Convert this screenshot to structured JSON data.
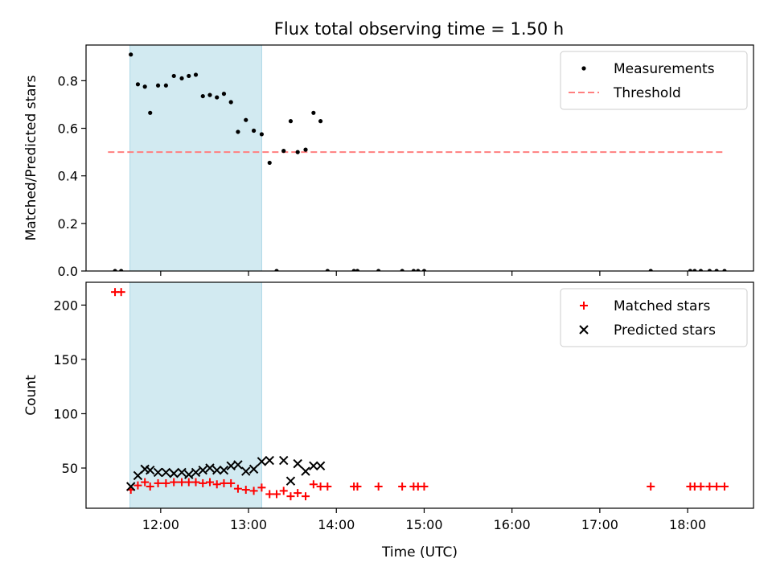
{
  "figure": {
    "title": "Flux total observing time = 1.50 h"
  },
  "chart_data": [
    {
      "type": "scatter",
      "panel": "top",
      "ylabel": "Matched/Predicted stars",
      "xlim": [
        11.15,
        18.75
      ],
      "ylim": [
        0,
        0.95
      ],
      "yticks": [
        0.0,
        0.2,
        0.4,
        0.6,
        0.8
      ],
      "ytick_labels": [
        "0.0",
        "0.2",
        "0.4",
        "0.6",
        "0.8"
      ],
      "shaded_span": {
        "x": [
          11.65,
          13.15
        ],
        "color": "#add8e6"
      },
      "legend_position": "top-right",
      "threshold": {
        "name": "Threshold",
        "y": 0.5,
        "x": [
          11.4,
          18.42
        ],
        "color": "#ff7f7f",
        "style": "dashed"
      },
      "series": [
        {
          "name": "Measurements",
          "color": "#000000",
          "marker": "dot",
          "points": [
            [
              11.48,
              0
            ],
            [
              11.55,
              0
            ],
            [
              11.66,
              0.91
            ],
            [
              11.74,
              0.785
            ],
            [
              11.82,
              0.775
            ],
            [
              11.88,
              0.665
            ],
            [
              11.97,
              0.78
            ],
            [
              12.06,
              0.78
            ],
            [
              12.15,
              0.82
            ],
            [
              12.24,
              0.81
            ],
            [
              12.32,
              0.82
            ],
            [
              12.4,
              0.825
            ],
            [
              12.48,
              0.735
            ],
            [
              12.56,
              0.74
            ],
            [
              12.64,
              0.73
            ],
            [
              12.72,
              0.745
            ],
            [
              12.8,
              0.71
            ],
            [
              12.88,
              0.585
            ],
            [
              12.97,
              0.635
            ],
            [
              13.06,
              0.59
            ],
            [
              13.15,
              0.575
            ],
            [
              13.24,
              0.455
            ],
            [
              13.32,
              0
            ],
            [
              13.4,
              0.505
            ],
            [
              13.48,
              0.63
            ],
            [
              13.56,
              0.5
            ],
            [
              13.65,
              0.51
            ],
            [
              13.74,
              0.665
            ],
            [
              13.82,
              0.63
            ],
            [
              13.9,
              0
            ],
            [
              14.2,
              0
            ],
            [
              14.24,
              0
            ],
            [
              14.48,
              0
            ],
            [
              14.75,
              0
            ],
            [
              14.88,
              0
            ],
            [
              14.93,
              0
            ],
            [
              15.0,
              0
            ],
            [
              17.58,
              0
            ],
            [
              18.03,
              0
            ],
            [
              18.08,
              0
            ],
            [
              18.15,
              0
            ],
            [
              18.25,
              0
            ],
            [
              18.33,
              0
            ],
            [
              18.42,
              0
            ]
          ]
        }
      ]
    },
    {
      "type": "scatter",
      "panel": "bottom",
      "xlabel": "Time (UTC)",
      "ylabel": "Count",
      "xlim": [
        11.15,
        18.75
      ],
      "ylim": [
        13,
        221
      ],
      "yticks": [
        50,
        100,
        150,
        200
      ],
      "ytick_labels": [
        "50",
        "100",
        "150",
        "200"
      ],
      "xticks": [
        12,
        13,
        14,
        15,
        16,
        17,
        18
      ],
      "xtick_labels": [
        "12:00",
        "13:00",
        "14:00",
        "15:00",
        "16:00",
        "17:00",
        "18:00"
      ],
      "shaded_span": {
        "x": [
          11.65,
          13.15
        ],
        "color": "#add8e6"
      },
      "legend_position": "top-right",
      "series": [
        {
          "name": "Matched stars",
          "color": "#ff0000",
          "marker": "plus",
          "points": [
            [
              11.48,
              212
            ],
            [
              11.55,
              212
            ],
            [
              11.66,
              30
            ],
            [
              11.74,
              34
            ],
            [
              11.82,
              37
            ],
            [
              11.88,
              33
            ],
            [
              11.97,
              36
            ],
            [
              12.06,
              36
            ],
            [
              12.15,
              37
            ],
            [
              12.24,
              37
            ],
            [
              12.32,
              37
            ],
            [
              12.4,
              37
            ],
            [
              12.48,
              36
            ],
            [
              12.56,
              37
            ],
            [
              12.64,
              35
            ],
            [
              12.72,
              36
            ],
            [
              12.8,
              36
            ],
            [
              12.88,
              31
            ],
            [
              12.97,
              30
            ],
            [
              13.06,
              29
            ],
            [
              13.15,
              32
            ],
            [
              13.24,
              26
            ],
            [
              13.32,
              26
            ],
            [
              13.4,
              29
            ],
            [
              13.48,
              24
            ],
            [
              13.56,
              27
            ],
            [
              13.65,
              24
            ],
            [
              13.74,
              35
            ],
            [
              13.82,
              33
            ],
            [
              13.9,
              33
            ],
            [
              14.2,
              33
            ],
            [
              14.24,
              33
            ],
            [
              14.48,
              33
            ],
            [
              14.75,
              33
            ],
            [
              14.88,
              33
            ],
            [
              14.93,
              33
            ],
            [
              15.0,
              33
            ],
            [
              17.58,
              33
            ],
            [
              18.03,
              33
            ],
            [
              18.08,
              33
            ],
            [
              18.15,
              33
            ],
            [
              18.25,
              33
            ],
            [
              18.33,
              33
            ],
            [
              18.42,
              33
            ]
          ]
        },
        {
          "name": "Predicted stars",
          "color": "#000000",
          "marker": "x",
          "points": [
            [
              11.66,
              33
            ],
            [
              11.74,
              43
            ],
            [
              11.82,
              49
            ],
            [
              11.88,
              48
            ],
            [
              11.97,
              46
            ],
            [
              12.06,
              46
            ],
            [
              12.15,
              45
            ],
            [
              12.24,
              46
            ],
            [
              12.32,
              44
            ],
            [
              12.4,
              46
            ],
            [
              12.48,
              48
            ],
            [
              12.56,
              50
            ],
            [
              12.64,
              48
            ],
            [
              12.72,
              48
            ],
            [
              12.8,
              52
            ],
            [
              12.88,
              53
            ],
            [
              12.97,
              47
            ],
            [
              13.06,
              49
            ],
            [
              13.15,
              56
            ],
            [
              13.24,
              57
            ],
            [
              13.4,
              57
            ],
            [
              13.48,
              38
            ],
            [
              13.56,
              54
            ],
            [
              13.65,
              47
            ],
            [
              13.74,
              52
            ],
            [
              13.82,
              52
            ]
          ]
        }
      ]
    }
  ]
}
